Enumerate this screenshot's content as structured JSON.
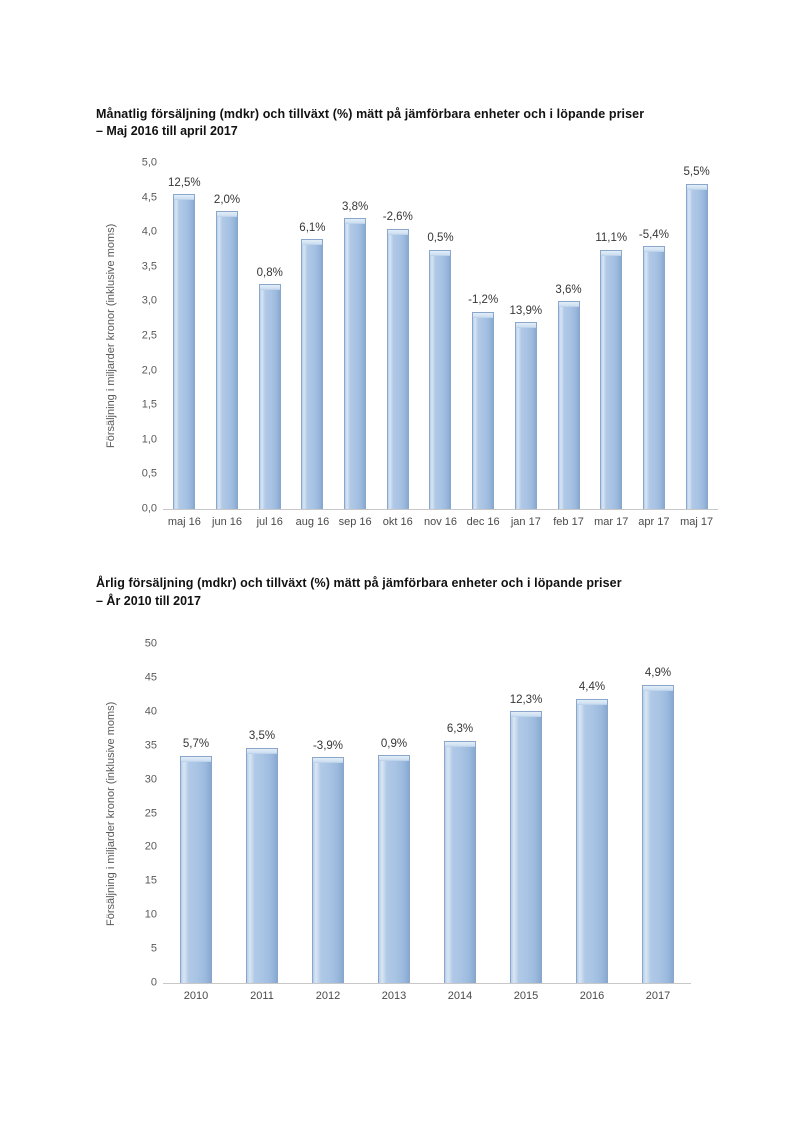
{
  "accent_colors": {
    "bar_fill": "#a8c3e3",
    "bar_edge": "#8aa7cb",
    "bar_cap": "#d9e6f4",
    "axis_line": "#c8c8c8",
    "tick_text": "#595959"
  },
  "charts": [
    {
      "title": "Månatlig försäljning (mdkr) och tillväxt (%) mätt på jämförbara enheter och i löpande priser",
      "subtitle": "– Maj 2016 till april 2017",
      "chart_data": {
        "type": "bar",
        "categories": [
          "maj 16",
          "jun 16",
          "jul 16",
          "aug 16",
          "sep 16",
          "okt 16",
          "nov 16",
          "dec 16",
          "jan 17",
          "feb 17",
          "mar 17",
          "apr 17",
          "maj 17"
        ],
        "values": [
          4.55,
          4.3,
          3.25,
          3.9,
          4.2,
          4.05,
          3.75,
          2.85,
          2.7,
          3.0,
          3.75,
          3.8,
          4.7
        ],
        "bar_labels": [
          "12,5%",
          "2,0%",
          "0,8%",
          "6,1%",
          "3,8%",
          "-2,6%",
          "0,5%",
          "-1,2%",
          "13,9%",
          "3,6%",
          "11,1%",
          "-5,4%",
          "5,5%"
        ],
        "xlabel": "",
        "ylabel": "Försäljning i miljarder kronor (inklusive moms)",
        "ylim": [
          0,
          5
        ],
        "ytick_labels": [
          "0,0",
          "0,5",
          "1,0",
          "1,5",
          "2,0",
          "2,5",
          "3,0",
          "3,5",
          "4,0",
          "4,5",
          "5,0"
        ],
        "grid": false,
        "legend": null,
        "bar_color": "#a8c3e3"
      }
    },
    {
      "title": "Årlig försäljning (mdkr) och tillväxt (%) mätt på jämförbara enheter och i löpande priser",
      "subtitle": "– År 2010 till 2017",
      "chart_data": {
        "type": "bar",
        "categories": [
          "2010",
          "2011",
          "2012",
          "2013",
          "2014",
          "2015",
          "2016",
          "2017"
        ],
        "values": [
          33.5,
          34.7,
          33.3,
          33.6,
          35.7,
          40.1,
          41.9,
          44.0
        ],
        "bar_labels": [
          "5,7%",
          "3,5%",
          "-3,9%",
          "0,9%",
          "6,3%",
          "12,3%",
          "4,4%",
          "4,9%"
        ],
        "xlabel": "",
        "ylabel": "Försäljning i miljarder kronor (inklusive moms)",
        "ylim": [
          0,
          50
        ],
        "ytick_labels": [
          "0",
          "5",
          "10",
          "15",
          "20",
          "25",
          "30",
          "35",
          "40",
          "45",
          "50"
        ],
        "grid": false,
        "legend": null,
        "bar_color": "#a8c3e3"
      }
    }
  ]
}
